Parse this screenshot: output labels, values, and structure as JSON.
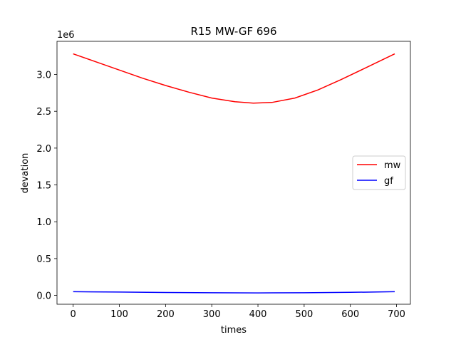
{
  "chart_data": {
    "type": "line",
    "title": "R15 MW-GF 696",
    "xlabel": "times",
    "ylabel": "devation",
    "y_offset_label": "1e6",
    "xlim": [
      -35,
      730
    ],
    "ylim": [
      -120000,
      3450000
    ],
    "x_ticks": [
      0,
      100,
      200,
      300,
      400,
      500,
      600,
      700
    ],
    "x_tick_labels": [
      "0",
      "100",
      "200",
      "300",
      "400",
      "500",
      "600",
      "700"
    ],
    "y_ticks": [
      0,
      500000,
      1000000,
      1500000,
      2000000,
      2500000,
      3000000
    ],
    "y_tick_labels": [
      "0.0",
      "0.5",
      "1.0",
      "1.5",
      "2.0",
      "2.5",
      "3.0"
    ],
    "grid": false,
    "legend_position": "center-right",
    "series": [
      {
        "name": "mw",
        "color": "#ff0000",
        "x": [
          0,
          50,
          100,
          150,
          200,
          250,
          300,
          350,
          390,
          430,
          480,
          530,
          580,
          630,
          696
        ],
        "y": [
          3280000,
          3170000,
          3060000,
          2950000,
          2850000,
          2760000,
          2680000,
          2630000,
          2610000,
          2620000,
          2680000,
          2790000,
          2930000,
          3080000,
          3280000
        ]
      },
      {
        "name": "gf",
        "color": "#0000ff",
        "x": [
          0,
          100,
          200,
          300,
          400,
          500,
          600,
          696
        ],
        "y": [
          50000,
          45000,
          40000,
          36000,
          34000,
          36000,
          42000,
          50000
        ]
      }
    ]
  }
}
